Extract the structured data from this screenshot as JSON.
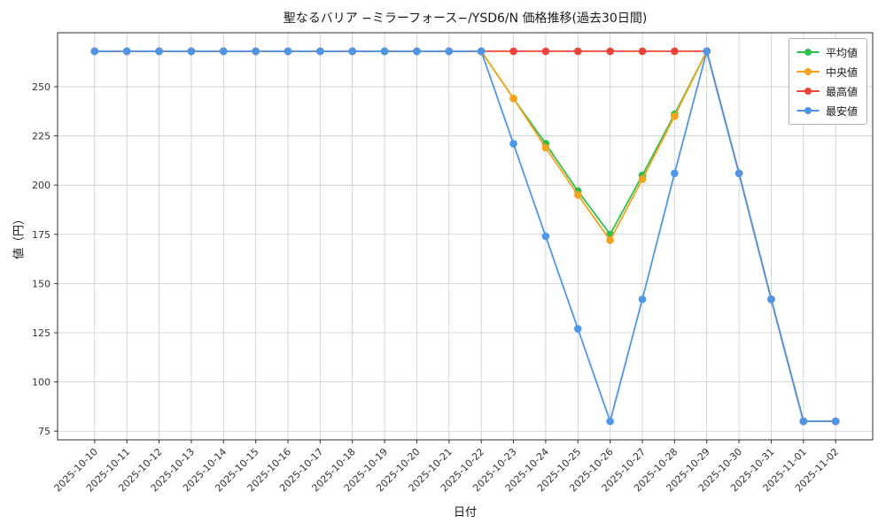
{
  "chart_data": {
    "type": "line",
    "title": "聖なるバリア −ミラーフォース−/YSD6/N 価格推移(過去30日間)",
    "xlabel": "日付",
    "ylabel": "値（円）",
    "x": [
      "2025-10-10",
      "2025-10-11",
      "2025-10-12",
      "2025-10-13",
      "2025-10-14",
      "2025-10-15",
      "2025-10-16",
      "2025-10-17",
      "2025-10-18",
      "2025-10-19",
      "2025-10-20",
      "2025-10-21",
      "2025-10-22",
      "2025-10-23",
      "2025-10-24",
      "2025-10-25",
      "2025-10-26",
      "2025-10-27",
      "2025-10-28",
      "2025-10-29",
      "2025-10-30",
      "2025-10-31",
      "2025-11-01",
      "2025-11-02"
    ],
    "ylim": [
      70.6,
      277.4
    ],
    "yticks": [
      75,
      100,
      125,
      150,
      175,
      200,
      225,
      250
    ],
    "grid": true,
    "grid_color": "#cccccc",
    "axes_color": "#2e2e2e",
    "legend_position": "upper right",
    "series": [
      {
        "id": "mean",
        "name": "平均値",
        "color": "#2fbf4f",
        "values": [
          268,
          268,
          268,
          268,
          268,
          268,
          268,
          268,
          268,
          268,
          268,
          268,
          268,
          244,
          221,
          197,
          175,
          205,
          236,
          268,
          206,
          142,
          80,
          80
        ]
      },
      {
        "id": "median",
        "name": "中央値",
        "color": "#f5a31a",
        "values": [
          268,
          268,
          268,
          268,
          268,
          268,
          268,
          268,
          268,
          268,
          268,
          268,
          268,
          244,
          219,
          195,
          172,
          203,
          235,
          268,
          206,
          142,
          80,
          80
        ]
      },
      {
        "id": "max",
        "name": "最高値",
        "color": "#f04438",
        "values": [
          268,
          268,
          268,
          268,
          268,
          268,
          268,
          268,
          268,
          268,
          268,
          268,
          268,
          268,
          268,
          268,
          268,
          268,
          268,
          268,
          206,
          142,
          80,
          80
        ]
      },
      {
        "id": "min",
        "name": "最安値",
        "color": "#4d96e8",
        "values": [
          268,
          268,
          268,
          268,
          268,
          268,
          268,
          268,
          268,
          268,
          268,
          268,
          268,
          221,
          174,
          127,
          80,
          142,
          206,
          268,
          206,
          142,
          80,
          80
        ]
      }
    ]
  }
}
